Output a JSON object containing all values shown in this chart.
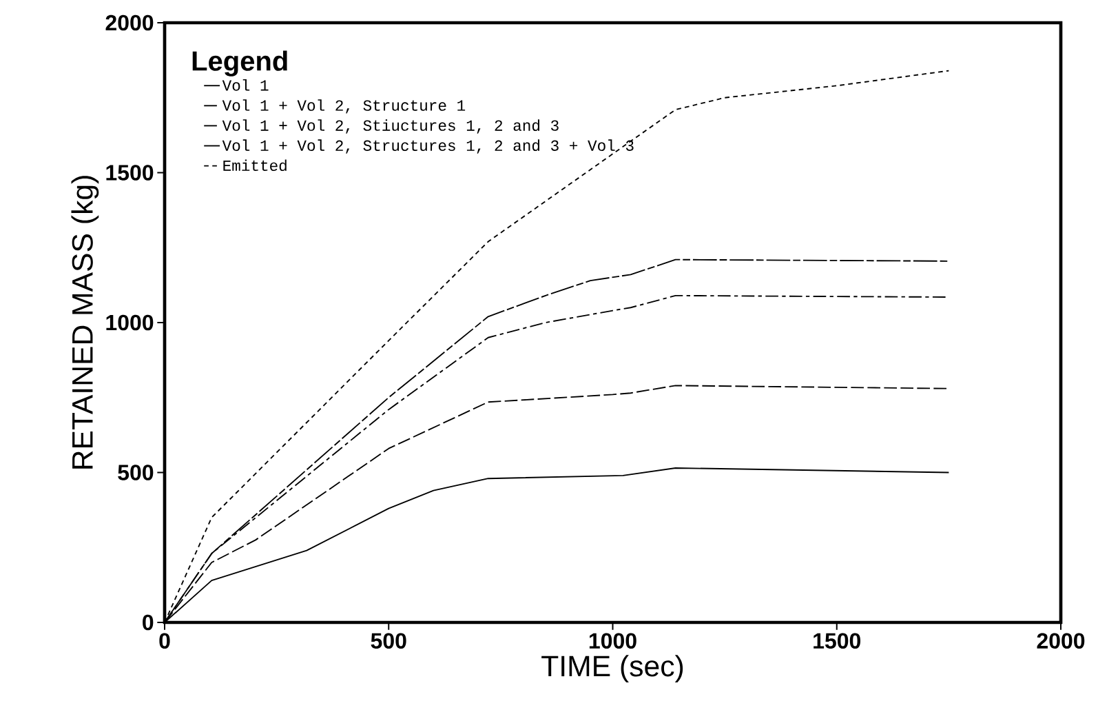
{
  "chart_data": {
    "type": "line",
    "xlabel": "TIME (sec)",
    "ylabel": "RETAINED MASS (kg)",
    "legend_title": "Legend",
    "legend": "top left",
    "xlim": [
      0,
      2000
    ],
    "ylim": [
      0,
      2000
    ],
    "xticks": [
      0,
      500,
      1000,
      1500,
      2000
    ],
    "yticks": [
      0,
      500,
      1000,
      1500,
      2000
    ],
    "grid": false,
    "marker": "none",
    "series": [
      {
        "name": "Vol 1",
        "color": "#000000",
        "line_style": "solid",
        "x": [
          0,
          105,
          317,
          500,
          600,
          722,
          1023,
          1140,
          1750
        ],
        "values": [
          0,
          140,
          240,
          380,
          440,
          480,
          490,
          515,
          500
        ]
      },
      {
        "name": "Vol 1 + Vol 2, Structure 1",
        "color": "#000000",
        "line_style": "dashed",
        "x": [
          0,
          105,
          203,
          500,
          722,
          1000,
          1040,
          1140,
          1750
        ],
        "values": [
          0,
          200,
          275,
          580,
          735,
          760,
          765,
          790,
          780
        ]
      },
      {
        "name": "Vol 1 + Vol 2, Stiuctures 1, 2 and 3",
        "color": "#000000",
        "line_style": "dashed",
        "x": [
          0,
          105,
          500,
          722,
          850,
          1000,
          1040,
          1140,
          1750
        ],
        "values": [
          0,
          230,
          710,
          950,
          1000,
          1040,
          1050,
          1090,
          1085
        ]
      },
      {
        "name": "Vol 1 + Vol 2, Structures 1, 2 and 3 + Vol 3",
        "color": "#000000",
        "line_style": "dashed",
        "x": [
          0,
          105,
          500,
          722,
          850,
          950,
          1040,
          1140,
          1750
        ],
        "values": [
          0,
          230,
          750,
          1020,
          1090,
          1140,
          1160,
          1210,
          1205
        ]
      },
      {
        "name": "Emitted",
        "color": "#000000",
        "line_style": "dotted",
        "x": [
          0,
          105,
          500,
          722,
          1140,
          1250,
          1500,
          1750
        ],
        "values": [
          0,
          350,
          940,
          1270,
          1710,
          1750,
          1790,
          1840
        ]
      }
    ]
  }
}
